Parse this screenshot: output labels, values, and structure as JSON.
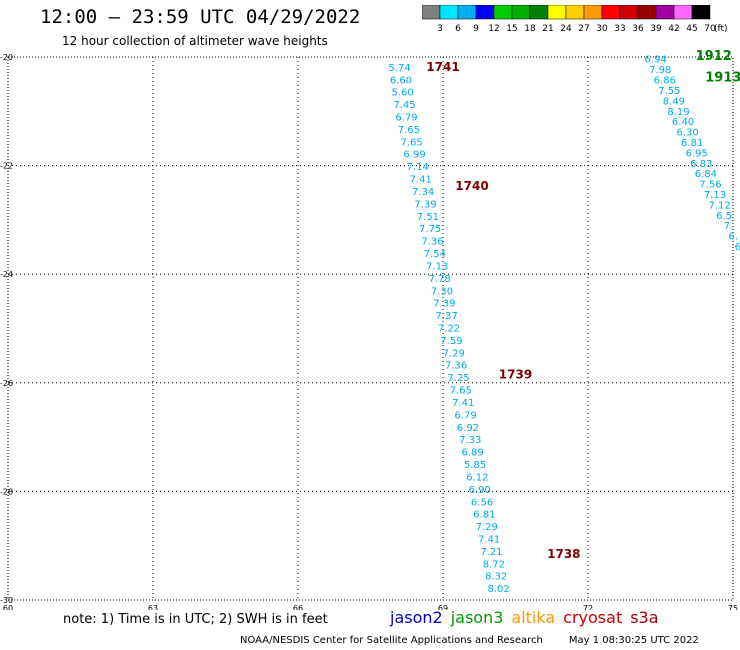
{
  "header": {
    "title": "12:00 — 23:59 UTC 04/29/2022",
    "subtitle": "12 hour collection of altimeter wave heights"
  },
  "colorbar": {
    "stops": [
      {
        "label": "3",
        "color": "#7f7f7f"
      },
      {
        "label": "6",
        "color": "#00e5ff"
      },
      {
        "label": "9",
        "color": "#00b0f0"
      },
      {
        "label": "12",
        "color": "#0000ff"
      },
      {
        "label": "15",
        "color": "#00cc00"
      },
      {
        "label": "18",
        "color": "#00b000"
      },
      {
        "label": "21",
        "color": "#008000"
      },
      {
        "label": "24",
        "color": "#ffff00"
      },
      {
        "label": "27",
        "color": "#ffd000"
      },
      {
        "label": "30",
        "color": "#ff9900"
      },
      {
        "label": "33",
        "color": "#ff0000"
      },
      {
        "label": "36",
        "color": "#cc0000"
      },
      {
        "label": "39",
        "color": "#990000"
      },
      {
        "label": "42",
        "color": "#a000a0"
      },
      {
        "label": "45",
        "color": "#ff66ff"
      },
      {
        "label": "70",
        "color": "#000000"
      }
    ],
    "unit": "(ft)"
  },
  "map": {
    "lon_ticks": [
      "60",
      "63",
      "66",
      "69",
      "72",
      "75"
    ],
    "lat_ticks": [
      "-20",
      "-22",
      "-24",
      "-26",
      "-28",
      "-30"
    ],
    "lon_range": [
      60,
      75
    ],
    "lat_range": [
      -20,
      -30
    ]
  },
  "tracks": {
    "main_color": "#00aaee",
    "labels": [
      {
        "text": "1741",
        "color": "#800000"
      },
      {
        "text": "1740",
        "color": "#800000"
      },
      {
        "text": "1739",
        "color": "#800000"
      },
      {
        "text": "1738",
        "color": "#800000"
      },
      {
        "text": "1912",
        "color": "#008000"
      },
      {
        "text": "1913",
        "color": "#008000"
      }
    ],
    "main_values": [
      "5.74",
      "6.60",
      "5.60",
      "7.45",
      "6.79",
      "7.65",
      "7.65",
      "6.99",
      "7.14",
      "7.41",
      "7.34",
      "7.39",
      "7.51",
      "7.75",
      "7.36",
      "7.54",
      "7.13",
      "7.78",
      "7.30",
      "7.39",
      "7.37",
      "7.22",
      "7.59",
      "7.29",
      "7.36",
      "7.25",
      "7.65",
      "7.41",
      "6.79",
      "6.92",
      "7.33",
      "6.89",
      "5.85",
      "6.12",
      "6.90",
      "6.56",
      "6.81",
      "7.29",
      "7.41",
      "7.21",
      "8.72",
      "8.32",
      "8.02"
    ],
    "right_values": [
      "6.94",
      "7.98",
      "6.86",
      "7.55",
      "8.49",
      "8.19",
      "6.40",
      "6.30",
      "6.81",
      "6.95",
      "6.83",
      "6.84",
      "7.56",
      "7.13",
      "7.12",
      "6.5",
      "7.",
      "6.",
      "6"
    ]
  },
  "footer": {
    "note": "note:  1) Time is in UTC;  2) SWH is in feet",
    "satellites": [
      {
        "name": "jason2",
        "color": "#0000cc"
      },
      {
        "name": "jason3",
        "color": "#009900"
      },
      {
        "name": "altika",
        "color": "#ff9900"
      },
      {
        "name": "cryosat",
        "color": "#cc0000"
      },
      {
        "name": "s3a",
        "color": "#990000"
      }
    ],
    "credit": "NOAA/NESDIS Center for Satellite Applications and Research",
    "timestamp": "May  1 08:30:25 UTC 2022"
  }
}
